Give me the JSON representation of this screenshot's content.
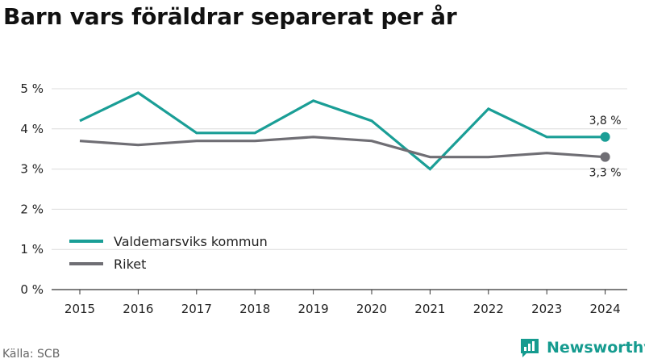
{
  "title": "Barn vars föräldrar separerat per år",
  "source": "Källa: SCB",
  "brand": {
    "name": "Newsworthy",
    "icon": "newsworthy-logo-icon",
    "color": "#159b8f"
  },
  "chart_data": {
    "type": "line",
    "title": "Barn vars föräldrar separerat per år",
    "xlabel": "",
    "ylabel": "",
    "x": [
      "2015",
      "2016",
      "2017",
      "2018",
      "2019",
      "2020",
      "2021",
      "2022",
      "2023",
      "2024"
    ],
    "ylim": [
      0,
      5
    ],
    "yticks": [
      0,
      1,
      2,
      3,
      4,
      5
    ],
    "ytick_labels": [
      "0 %",
      "1 %",
      "2 %",
      "3 %",
      "4 %",
      "5 %"
    ],
    "grid": true,
    "legend_position": "bottom-left",
    "series": [
      {
        "name": "Valdemarsviks kommun",
        "color": "#1a9e96",
        "values": [
          4.2,
          4.9,
          3.9,
          3.9,
          4.7,
          4.2,
          3.0,
          4.5,
          3.8,
          3.8
        ],
        "end_label": "3,8 %"
      },
      {
        "name": "Riket",
        "color": "#6f6e74",
        "values": [
          3.7,
          3.6,
          3.7,
          3.7,
          3.8,
          3.7,
          3.3,
          3.3,
          3.4,
          3.3
        ],
        "end_label": "3,3 %"
      }
    ]
  }
}
